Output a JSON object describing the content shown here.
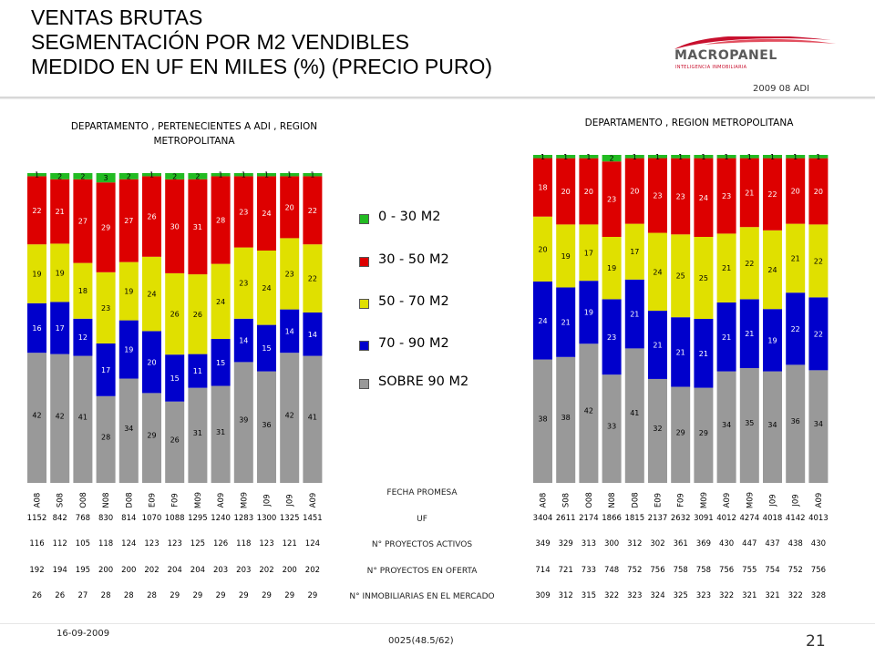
{
  "header": {
    "title_lines": [
      "VENTAS BRUTAS",
      "SEGMENTACIÓN POR M2 VENDIBLES",
      "MEDIDO EN UF EN MILES (%) (PRECIO PURO)"
    ],
    "logo_name": "MACROPANEL",
    "logo_tagline": "INTELIGENCIA INMOBILIARIA",
    "period": "2009 08 ADI"
  },
  "colors": {
    "segments": [
      "#999999",
      "#0000cc",
      "#e0e000",
      "#dd0000",
      "#22bb22"
    ],
    "logo_red": "#c8102e",
    "logo_gray": "#7a7a7a"
  },
  "legend": {
    "items": [
      {
        "label": "0 - 30 M2",
        "color": "#22bb22"
      },
      {
        "label": "30 - 50 M2",
        "color": "#dd0000"
      },
      {
        "label": "50 - 70 M2",
        "color": "#e0e000"
      },
      {
        "label": "70 - 90 M2",
        "color": "#0000cc"
      },
      {
        "label": "SOBRE 90 M2",
        "color": "#999999"
      }
    ]
  },
  "row_labels": {
    "fecha": "FECHA PROMESA",
    "uf": "UF",
    "activos": "N° PROYECTOS ACTIVOS",
    "oferta": "N° PROYECTOS EN OFERTA",
    "inmobiliarias": "N° INMOBILIARIAS EN EL MERCADO"
  },
  "chart_data": [
    {
      "type": "bar",
      "stacked": true,
      "title": "DEPARTAMENTO , PERTENECIENTES A ADI , REGION METROPOLITANA",
      "categories": [
        "A08",
        "S08",
        "O08",
        "N08",
        "D08",
        "E09",
        "F09",
        "M09",
        "A09",
        "M09",
        "J09",
        "J09",
        "A09"
      ],
      "series": [
        {
          "name": "SOBRE 90 M2",
          "values": [
            42,
            42,
            41,
            28,
            34,
            29,
            26,
            31,
            31,
            39,
            36,
            42,
            41
          ]
        },
        {
          "name": "70 - 90 M2",
          "values": [
            16,
            17,
            12,
            17,
            19,
            20,
            15,
            11,
            15,
            14,
            15,
            14,
            14
          ]
        },
        {
          "name": "50 - 70 M2",
          "values": [
            19,
            19,
            18,
            23,
            19,
            24,
            26,
            26,
            24,
            23,
            24,
            23,
            22
          ]
        },
        {
          "name": "30 - 50 M2",
          "values": [
            22,
            21,
            27,
            29,
            27,
            26,
            30,
            31,
            28,
            23,
            24,
            20,
            22
          ]
        },
        {
          "name": "0 - 30 M2",
          "values": [
            1,
            2,
            2,
            3,
            2,
            1,
            2,
            2,
            1,
            1,
            1,
            1,
            1
          ]
        }
      ],
      "ylim": [
        0,
        100
      ],
      "table": {
        "uf": [
          "1152",
          "842",
          "768",
          "830",
          "814",
          "1070",
          "1088",
          "1295",
          "1240",
          "1283",
          "1300",
          "1325",
          "1451"
        ],
        "activos": [
          "116",
          "112",
          "105",
          "118",
          "124",
          "123",
          "123",
          "125",
          "126",
          "118",
          "123",
          "121",
          "124"
        ],
        "oferta": [
          "192",
          "194",
          "195",
          "200",
          "200",
          "202",
          "204",
          "204",
          "203",
          "203",
          "202",
          "200",
          "202"
        ],
        "inmobiliarias": [
          "26",
          "26",
          "27",
          "28",
          "28",
          "28",
          "29",
          "29",
          "29",
          "29",
          "29",
          "29",
          "29"
        ]
      }
    },
    {
      "type": "bar",
      "stacked": true,
      "title": "DEPARTAMENTO , REGION METROPOLITANA",
      "categories": [
        "A08",
        "S08",
        "O08",
        "N08",
        "D08",
        "E09",
        "F09",
        "M09",
        "A09",
        "M09",
        "J09",
        "J09",
        "A09"
      ],
      "series": [
        {
          "name": "SOBRE 90 M2",
          "values": [
            38,
            38,
            42,
            33,
            41,
            32,
            29,
            29,
            34,
            35,
            34,
            36,
            34
          ]
        },
        {
          "name": "70 - 90 M2",
          "values": [
            24,
            21,
            19,
            23,
            21,
            21,
            21,
            21,
            21,
            21,
            19,
            22,
            22
          ]
        },
        {
          "name": "50 - 70 M2",
          "values": [
            20,
            19,
            17,
            19,
            17,
            24,
            25,
            25,
            21,
            22,
            24,
            21,
            22
          ]
        },
        {
          "name": "30 - 50 M2",
          "values": [
            18,
            20,
            20,
            23,
            20,
            23,
            23,
            24,
            23,
            21,
            22,
            20,
            20
          ]
        },
        {
          "name": "0 - 30 M2",
          "values": [
            1,
            1,
            1,
            2,
            1,
            1,
            1,
            1,
            1,
            1,
            1,
            1,
            1
          ]
        }
      ],
      "ylim": [
        0,
        100
      ],
      "table": {
        "uf": [
          "3404",
          "2611",
          "2174",
          "1866",
          "1815",
          "2137",
          "2632",
          "3091",
          "4012",
          "4274",
          "4018",
          "4142",
          "4013"
        ],
        "activos": [
          "349",
          "329",
          "313",
          "300",
          "312",
          "302",
          "361",
          "369",
          "430",
          "447",
          "437",
          "438",
          "430"
        ],
        "oferta": [
          "714",
          "721",
          "733",
          "748",
          "752",
          "756",
          "758",
          "758",
          "756",
          "755",
          "754",
          "752",
          "756"
        ],
        "inmobiliarias": [
          "309",
          "312",
          "315",
          "322",
          "323",
          "324",
          "325",
          "323",
          "322",
          "321",
          "321",
          "322",
          "328"
        ]
      }
    }
  ],
  "footer": {
    "date": "16-09-2009",
    "code": "0025(48.5/62)",
    "page": "21"
  }
}
